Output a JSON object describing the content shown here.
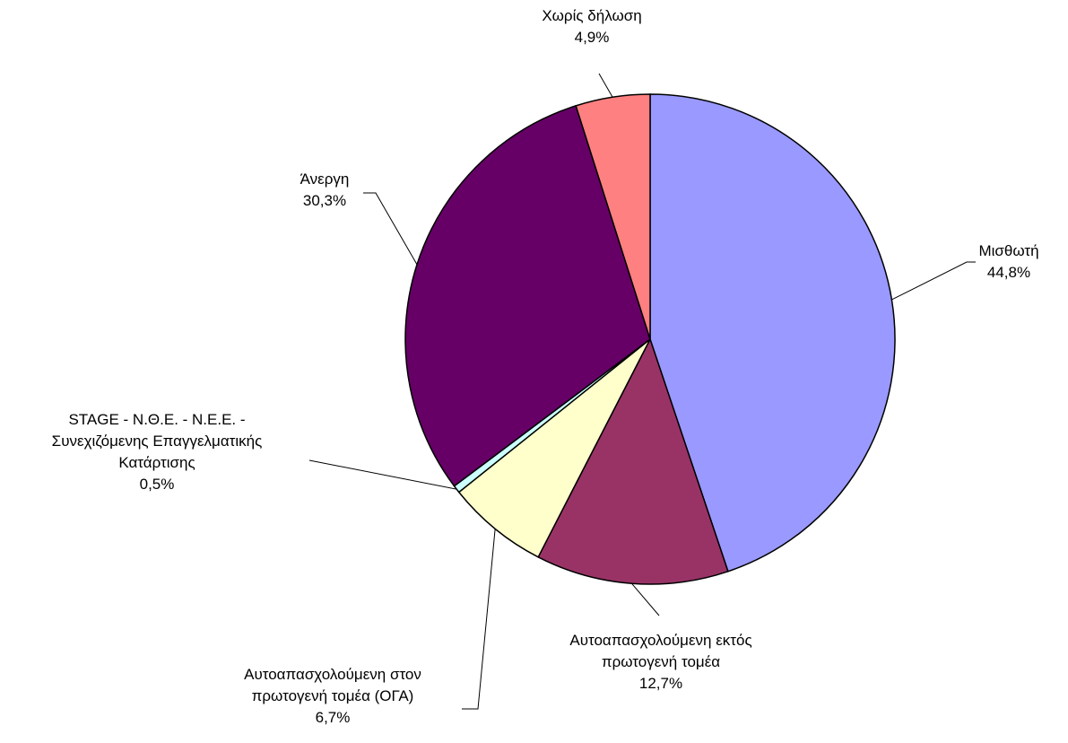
{
  "chart_data": {
    "type": "pie",
    "categories": [
      "Μισθωτή",
      "Αυτοαπασχολούμενη εκτός\nπρωτογενή τομέα",
      "Αυτοαπασχολούμενη στον\nπρωτογενή τομέα (ΟΓΑ)",
      "STAGE - Ν.Θ.Ε. - Ν.Ε.Ε. -\nΣυνεχιζόμενης Επαγγελματικής\nΚατάρτισης",
      "Άνεργη",
      "Χωρίς δήλωση"
    ],
    "values": [
      44.8,
      12.7,
      6.7,
      0.5,
      30.3,
      4.9
    ],
    "value_labels": [
      "44,8%",
      "12,7%",
      "6,7%",
      "0,5%",
      "30,3%",
      "4,9%"
    ],
    "colors": [
      "#9999ff",
      "#993366",
      "#ffffcc",
      "#ccffff",
      "#660066",
      "#ff8080"
    ]
  }
}
